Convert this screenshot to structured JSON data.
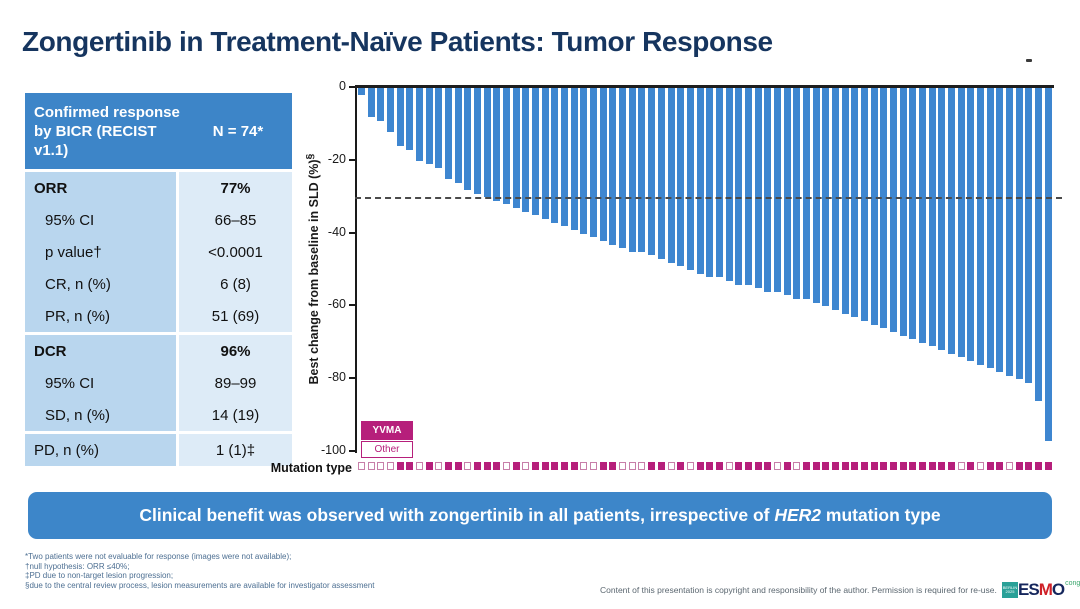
{
  "title": "Zongertinib in Treatment-Naïve Patients: Tumor Response",
  "summary_table": {
    "header": {
      "label": "Confirmed response by BICR (RECIST v1.1)",
      "value": "N = 74*"
    },
    "rows": [
      {
        "label": "ORR",
        "value": "77%"
      },
      {
        "label": "95% CI",
        "value": "66–85"
      },
      {
        "label": "p value†",
        "value": "<0.0001"
      },
      {
        "label": "CR, n (%)",
        "value": "6 (8)"
      },
      {
        "label": "PR, n (%)",
        "value": "51 (69)"
      },
      {
        "label": "DCR",
        "value": "96%"
      },
      {
        "label": "95% CI",
        "value": "89–99"
      },
      {
        "label": "SD, n (%)",
        "value": "14 (19)"
      },
      {
        "label": "PD, n (%)",
        "value": "1 (1)‡"
      }
    ]
  },
  "chart_data": {
    "type": "bar",
    "title": "",
    "xlabel": "",
    "ylabel": "Best change from baseline in SLD (%)",
    "ylabel_sup": "§",
    "ylim": [
      -100,
      0
    ],
    "yticks": [
      0,
      -20,
      -40,
      -60,
      -80,
      -100
    ],
    "reference_line_y": -30,
    "grid": false,
    "legend_position": "bottom-left-inside",
    "bar_color": "#3E86D0",
    "accent_magenta": "#B61F7B",
    "legend": [
      {
        "label": "YVMA",
        "style": "filled"
      },
      {
        "label": "Other",
        "style": "outlined"
      }
    ],
    "mutation_axis_label": "Mutation type",
    "values": [
      -2,
      -8,
      -9,
      -12,
      -16,
      -17,
      -20,
      -21,
      -22,
      -25,
      -26,
      -28,
      -29,
      -30,
      -31,
      -32,
      -33,
      -34,
      -35,
      -36,
      -37,
      -38,
      -39,
      -40,
      -41,
      -42,
      -43,
      -44,
      -45,
      -45,
      -46,
      -47,
      -48,
      -49,
      -50,
      -51,
      -52,
      -52,
      -53,
      -54,
      -54,
      -55,
      -56,
      -56,
      -57,
      -58,
      -58,
      -59,
      -60,
      -61,
      -62,
      -63,
      -64,
      -65,
      -66,
      -67,
      -68,
      -69,
      -70,
      -71,
      -72,
      -73,
      -74,
      -75,
      -76,
      -77,
      -78,
      -79,
      -80,
      -81,
      -86,
      -97
    ],
    "mutation_type": [
      "O",
      "O",
      "O",
      "O",
      "Y",
      "Y",
      "O",
      "Y",
      "O",
      "Y",
      "Y",
      "O",
      "Y",
      "Y",
      "Y",
      "O",
      "Y",
      "O",
      "Y",
      "Y",
      "Y",
      "Y",
      "Y",
      "O",
      "O",
      "Y",
      "Y",
      "O",
      "O",
      "O",
      "Y",
      "Y",
      "O",
      "Y",
      "O",
      "Y",
      "Y",
      "Y",
      "O",
      "Y",
      "Y",
      "Y",
      "Y",
      "O",
      "Y",
      "O",
      "Y",
      "Y",
      "Y",
      "Y",
      "Y",
      "Y",
      "Y",
      "Y",
      "Y",
      "Y",
      "Y",
      "Y",
      "Y",
      "Y",
      "Y",
      "Y",
      "O",
      "Y",
      "O",
      "Y",
      "Y",
      "O",
      "Y",
      "Y",
      "Y",
      "Y"
    ]
  },
  "banner": {
    "pre": "Clinical benefit was observed with zongertinib in all patients, irrespective of ",
    "gene": "HER2",
    "post": " mutation type"
  },
  "footnotes": [
    "*Two patients were not evaluable for response (images were not available);",
    "†null hypothesis: ORR ≤40%;",
    "‡PD due to non-target lesion progression;",
    "§due to the central review process, lesion measurements are available for investigator assessment"
  ],
  "footer": {
    "copyright": "Content of this presentation is copyright and responsibility of the author. Permission is required for re-use.",
    "logo": {
      "badge": "BERLIN 2025",
      "esmo_parts": [
        "ES",
        "M",
        "O"
      ],
      "congress": "congress"
    }
  },
  "colors": {
    "title_navy": "#16355F",
    "table_header_blue": "#3D85C8",
    "table_label_blue": "#B9D6EE",
    "table_value_blue": "#DDEBF7",
    "bar_blue": "#3E86D0",
    "banner_blue": "#3D86C9",
    "magenta": "#B61F7B"
  }
}
